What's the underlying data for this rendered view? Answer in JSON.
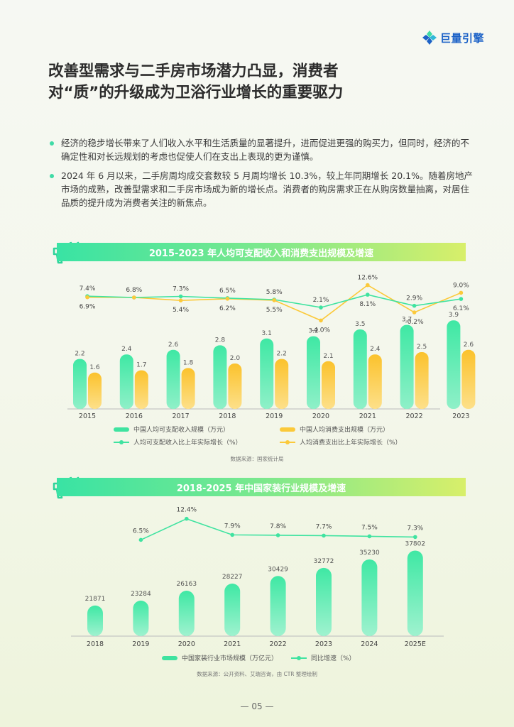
{
  "logo": {
    "text": "巨量引擎"
  },
  "title_line1": "改善型需求与二手房市场潜力凸显，消费者",
  "title_line2": "对“质”的升级成为卫浴行业增长的重要驱力",
  "bullets": [
    "经济的稳步增长带来了人们收入水平和生活质量的显著提升，进而促进更强的购买力，但同时，经济的不确定性和对长远规划的考虑也促使人们在支出上表现的更为谨慎。",
    "2024 年 6 月以来，二手房周均成交套数较 5 月周均增长 10.3%，较上年同期增长 20.1%。随着房地产市场的成熟，改善型需求和二手房市场成为新的增长点。消费者的购房需求正在从购房数量抽离，对居住品质的提升成为消费者关注的新焦点。"
  ],
  "chart1": {
    "banner": "2015-2023 年人均可支配收入和消费支出规模及增速",
    "legend": {
      "income_bar": "中国人均可支配收入规模（万元）",
      "consume_bar": "中国人均消费支出规模（万元）",
      "income_line": "人均可支配收入比上年实际增长（%）",
      "consume_line": "人均消费支出比上年实际增长（%）"
    },
    "source": "数据来源：国家统计局",
    "colors": {
      "income": "#3fe3a0",
      "consume": "#fbc93a"
    }
  },
  "chart2": {
    "banner": "2018-2025 年中国家装行业规模及增速",
    "legend": {
      "bar": "中国家装行业市场规模（万亿元）",
      "line": "同比增速（%）"
    },
    "source": "数据来源：公开资料、艾瑞咨询，由 CTR 整理绘制",
    "colors": {
      "bar": "#3fe3a0"
    }
  },
  "page_number": "— 05 —",
  "chart_data": [
    {
      "type": "bar",
      "categories": [
        "2015",
        "2016",
        "2017",
        "2018",
        "2019",
        "2020",
        "2021",
        "2022",
        "2023"
      ],
      "series": [
        {
          "name": "中国人均可支配收入规模（万元）",
          "kind": "bar",
          "values": [
            2.2,
            2.4,
            2.6,
            2.8,
            3.1,
            3.2,
            3.5,
            3.7,
            3.9
          ]
        },
        {
          "name": "中国人均消费支出规模（万元）",
          "kind": "bar",
          "values": [
            1.6,
            1.7,
            1.8,
            2.0,
            2.2,
            2.1,
            2.4,
            2.5,
            2.6
          ]
        },
        {
          "name": "人均可支配收入比上年实际增长（%）",
          "kind": "line",
          "values": [
            7.4,
            6.8,
            7.3,
            6.5,
            5.8,
            2.1,
            8.1,
            2.9,
            6.1
          ]
        },
        {
          "name": "人均消费支出比上年实际增长（%）",
          "kind": "line",
          "values": [
            6.9,
            6.8,
            5.4,
            6.2,
            5.5,
            -4.0,
            12.6,
            -0.2,
            9.0
          ]
        }
      ],
      "labels_income_line": [
        "7.4%",
        "6.8%",
        "7.3%",
        "6.5%",
        "5.8%",
        "2.1%",
        "8.1%",
        "2.9%",
        "6.1%"
      ],
      "labels_consume_line": [
        "6.9%",
        "",
        "5.4%",
        "6.2%",
        "5.5%",
        "-4.0%",
        "12.6%",
        "-0.2%",
        "9.0%"
      ],
      "title": "2015-2023 年人均可支配收入和消费支出规模及增速",
      "legend_position": "bottom"
    },
    {
      "type": "bar",
      "categories": [
        "2018",
        "2019",
        "2020",
        "2021",
        "2022",
        "2023",
        "2024",
        "2025E"
      ],
      "series": [
        {
          "name": "中国家装行业市场规模（万亿元）",
          "kind": "bar",
          "values": [
            21871,
            23284,
            26163,
            28227,
            30429,
            32772,
            35230,
            37802
          ]
        },
        {
          "name": "同比增速（%）",
          "kind": "line",
          "values": [
            null,
            6.5,
            12.4,
            7.9,
            7.8,
            7.7,
            7.5,
            7.3
          ]
        }
      ],
      "labels_line": [
        "",
        "6.5%",
        "12.4%",
        "7.9%",
        "7.8%",
        "7.7%",
        "7.5%",
        "7.3%"
      ],
      "title": "2018-2025 年中国家装行业规模及增速",
      "legend_position": "bottom"
    }
  ]
}
